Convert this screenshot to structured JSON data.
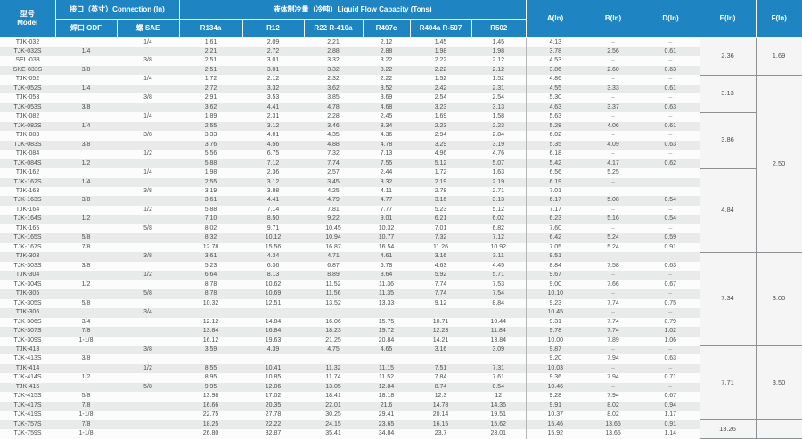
{
  "header": {
    "model_zh": "型号",
    "model_en": "Model",
    "connection": "接口（英寸）Connection (In)",
    "odf": "焊口 ODF",
    "sae": "螺 SAE",
    "capacity": "液体制冷量（冷吨）Liquid Flow Capacity (Tons)",
    "refrigerants": [
      "R134a",
      "R12",
      "R22 R-410a",
      "R407c",
      "R404a R-507",
      "R502"
    ],
    "dims": [
      "A(In)",
      "B(In)",
      "D(In)",
      "E(In)",
      "F(In)"
    ]
  },
  "colors": {
    "header_blue": "#1e85c2",
    "row_alt_gray": "#e9eaea",
    "text_gray": "#4e4f51"
  },
  "rows": [
    {
      "model": "TJK-032",
      "odf": "",
      "sae": "1/4",
      "c": [
        "1.61",
        "2.09",
        "2.21",
        "2.12",
        "1.45",
        "1.45"
      ],
      "a": "4.13",
      "b": "–",
      "d": "–"
    },
    {
      "model": "TJK-032S",
      "odf": "1/4",
      "sae": "",
      "c": [
        "2.21",
        "2.72",
        "2.88",
        "2.88",
        "1.98",
        "1.98"
      ],
      "a": "3.78",
      "b": "2.56",
      "d": "0.61"
    },
    {
      "model": "SEL-033",
      "odf": "",
      "sae": "3/8",
      "c": [
        "2.51",
        "3.01",
        "3.32",
        "3.22",
        "2.22",
        "2.12"
      ],
      "a": "4.53",
      "b": "–",
      "d": "–"
    },
    {
      "model": "SKE-033S",
      "odf": "3/8",
      "sae": "",
      "c": [
        "2.51",
        "3.01",
        "3.32",
        "3.22",
        "2.22",
        "2.12"
      ],
      "a": "3.86",
      "b": "2.60",
      "d": "0.63"
    },
    {
      "model": "TJK-052",
      "odf": "",
      "sae": "1/4",
      "c": [
        "1.72",
        "2.12",
        "2.32",
        "2.22",
        "1.52",
        "1.52"
      ],
      "a": "4.86",
      "b": "–",
      "d": "–"
    },
    {
      "model": "TJK-052S",
      "odf": "1/4",
      "sae": "",
      "c": [
        "2.72",
        "3.32",
        "3.62",
        "3.52",
        "2.42",
        "2.31"
      ],
      "a": "4.55",
      "b": "3.33",
      "d": "0.61"
    },
    {
      "model": "TJK-053",
      "odf": "",
      "sae": "3/8",
      "c": [
        "2.91",
        "3.53",
        "3.85",
        "3.69",
        "2.54",
        "2.54"
      ],
      "a": "5.30",
      "b": "–",
      "d": "–"
    },
    {
      "model": "TJK-053S",
      "odf": "3/8",
      "sae": "",
      "c": [
        "3.62",
        "4.41",
        "4.78",
        "4.68",
        "3.23",
        "3.13"
      ],
      "a": "4.63",
      "b": "3.37",
      "d": "0.63"
    },
    {
      "model": "TJK-082",
      "odf": "",
      "sae": "1/4",
      "c": [
        "1.89",
        "2.31",
        "2.28",
        "2.45",
        "1.69",
        "1.58"
      ],
      "a": "5.63",
      "b": "–",
      "d": "–"
    },
    {
      "model": "TJK-082S",
      "odf": "1/4",
      "sae": "",
      "c": [
        "2.55",
        "3.12",
        "3.46",
        "3.34",
        "2.23",
        "2.23"
      ],
      "a": "5.28",
      "b": "4.06",
      "d": "0.61"
    },
    {
      "model": "TJK-083",
      "odf": "",
      "sae": "3/8",
      "c": [
        "3.33",
        "4.01",
        "4.35",
        "4.36",
        "2.94",
        "2.84"
      ],
      "a": "6.02",
      "b": "–",
      "d": "–"
    },
    {
      "model": "TJK-083S",
      "odf": "3/8",
      "sae": "",
      "c": [
        "3.76",
        "4.56",
        "4.88",
        "4.78",
        "3.29",
        "3.19"
      ],
      "a": "5.35",
      "b": "4.09",
      "d": "0.63"
    },
    {
      "model": "TJK-084",
      "odf": "",
      "sae": "1/2",
      "c": [
        "5.56",
        "6.75",
        "7.32",
        "7.13",
        "4.96",
        "4.76"
      ],
      "a": "6.18",
      "b": "–",
      "d": "–"
    },
    {
      "model": "TJK-084S",
      "odf": "1/2",
      "sae": "",
      "c": [
        "5.88",
        "7.12",
        "7.74",
        "7.55",
        "5.12",
        "5.07"
      ],
      "a": "5.42",
      "b": "4.17",
      "d": "0.62"
    },
    {
      "model": "TJK-162",
      "odf": "",
      "sae": "1/4",
      "c": [
        "1.98",
        "2.36",
        "2.57",
        "2.44",
        "1.72",
        "1.63"
      ],
      "a": "6.56",
      "b": "5.25",
      "d": ""
    },
    {
      "model": "TJK-162S",
      "odf": "1/4",
      "sae": "",
      "c": [
        "2.55",
        "3.12",
        "3.45",
        "3.32",
        "2.19",
        "2.19"
      ],
      "a": "6.19",
      "b": "–",
      "d": ""
    },
    {
      "model": "TJK-163",
      "odf": "",
      "sae": "3/8",
      "c": [
        "3.19",
        "3.88",
        "4.25",
        "4.11",
        "2.78",
        "2.71"
      ],
      "a": "7.01",
      "b": "–",
      "d": ""
    },
    {
      "model": "TJK-163S",
      "odf": "3/8",
      "sae": "",
      "c": [
        "3.61",
        "4.41",
        "4.79",
        "4.77",
        "3.16",
        "3.13"
      ],
      "a": "6.17",
      "b": "5.08",
      "d": "0.54"
    },
    {
      "model": "TJK-164",
      "odf": "",
      "sae": "1/2",
      "c": [
        "5.88",
        "7.14",
        "7.81",
        "7.77",
        "5.23",
        "5.12"
      ],
      "a": "7.17",
      "b": "–",
      "d": "–"
    },
    {
      "model": "TJK-164S",
      "odf": "1/2",
      "sae": "",
      "c": [
        "7.10",
        "8.50",
        "9.22",
        "9.01",
        "6.21",
        "6.02"
      ],
      "a": "6.23",
      "b": "5.16",
      "d": "0.54"
    },
    {
      "model": "TJK-165",
      "odf": "",
      "sae": "5/8",
      "c": [
        "8.02",
        "9.71",
        "10.45",
        "10.32",
        "7.01",
        "6.82"
      ],
      "a": "7.60",
      "b": "–",
      "d": "–"
    },
    {
      "model": "TJK-165S",
      "odf": "5/8",
      "sae": "",
      "c": [
        "8.32",
        "10.12",
        "10.94",
        "10.77",
        "7.32",
        "7.12"
      ],
      "a": "6.42",
      "b": "5.24",
      "d": "0.59"
    },
    {
      "model": "TJK-167S",
      "odf": "7/8",
      "sae": "",
      "c": [
        "12.78",
        "15.56",
        "16.87",
        "16.54",
        "11.26",
        "10.92"
      ],
      "a": "7.05",
      "b": "5.24",
      "d": "0.91"
    },
    {
      "model": "TJK-303",
      "odf": "",
      "sae": "3/8",
      "c": [
        "3.61",
        "4.34",
        "4.71",
        "4.61",
        "3.16",
        "3.11"
      ],
      "a": "9.51",
      "b": "–",
      "d": "–"
    },
    {
      "model": "TJK-303S",
      "odf": "3/8",
      "sae": "",
      "c": [
        "5.23",
        "6.36",
        "6.87",
        "6.78",
        "4.63",
        "4.45"
      ],
      "a": "8.84",
      "b": "7.58",
      "d": "0.63"
    },
    {
      "model": "TJK-304",
      "odf": "",
      "sae": "1/2",
      "c": [
        "6.64",
        "8.13",
        "8.89",
        "8.64",
        "5.92",
        "5.71"
      ],
      "a": "9.67",
      "b": "–",
      "d": "–"
    },
    {
      "model": "TJK-304S",
      "odf": "1/2",
      "sae": "",
      "c": [
        "8.78",
        "10.62",
        "11.52",
        "11.36",
        "7.74",
        "7.53"
      ],
      "a": "9.00",
      "b": "7.66",
      "d": "0.67"
    },
    {
      "model": "TJK-305",
      "odf": "",
      "sae": "5/8",
      "c": [
        "8.78",
        "10.69",
        "11.56",
        "11.35",
        "7.74",
        "7.54"
      ],
      "a": "10.10",
      "b": "–",
      "d": "–"
    },
    {
      "model": "TJK-305S",
      "odf": "5/8",
      "sae": "",
      "c": [
        "10.32",
        "12.51",
        "13.52",
        "13.33",
        "9.12",
        "8.84"
      ],
      "a": "9.23",
      "b": "7.74",
      "d": "0.75"
    },
    {
      "model": "TJK-306",
      "odf": "",
      "sae": "3/4",
      "c": [
        "",
        "",
        "",
        "",
        "",
        ""
      ],
      "a": "10.45",
      "b": "–",
      "d": "–"
    },
    {
      "model": "TJK-306S",
      "odf": "3/4",
      "sae": "",
      "c": [
        "12.12",
        "14.84",
        "16.06",
        "15.75",
        "10.71",
        "10.44"
      ],
      "a": "9.31",
      "b": "7.74",
      "d": "0.79"
    },
    {
      "model": "TJK-307S",
      "odf": "7/8",
      "sae": "",
      "c": [
        "13.84",
        "16.84",
        "18.23",
        "19.72",
        "12.23",
        "11.84"
      ],
      "a": "9.78",
      "b": "7.74",
      "d": "1.02"
    },
    {
      "model": "TJK-309S",
      "odf": "1-1/8",
      "sae": "",
      "c": [
        "16.12",
        "19.63",
        "21.25",
        "20.84",
        "14.21",
        "13.84"
      ],
      "a": "10.00",
      "b": "7.89",
      "d": "1.06"
    },
    {
      "model": "TJK-413",
      "odf": "",
      "sae": "3/8",
      "c": [
        "3.59",
        "4.39",
        "4.75",
        "4.65",
        "3.16",
        "3.09"
      ],
      "a": "9.87",
      "b": "–",
      "d": "–"
    },
    {
      "model": "TJK-413S",
      "odf": "3/8",
      "sae": "",
      "c": [
        "",
        "",
        "",
        "",
        "",
        ""
      ],
      "a": "9.20",
      "b": "7.94",
      "d": "0.63"
    },
    {
      "model": "TJK-414",
      "odf": "",
      "sae": "1/2",
      "c": [
        "8.55",
        "10.41",
        "11.32",
        "11.15",
        "7.51",
        "7.31"
      ],
      "a": "10.03",
      "b": "–",
      "d": "–"
    },
    {
      "model": "TJK-414S",
      "odf": "1/2",
      "sae": "",
      "c": [
        "8.95",
        "10.85",
        "11.74",
        "11.52",
        "7.84",
        "7.61"
      ],
      "a": "9.36",
      "b": "7.94",
      "d": "0.71"
    },
    {
      "model": "TJK-415",
      "odf": "",
      "sae": "5/8",
      "c": [
        "9.95",
        "12.06",
        "13.05",
        "12.84",
        "8.74",
        "8.54"
      ],
      "a": "10.46",
      "b": "–",
      "d": "–"
    },
    {
      "model": "TJK-415S",
      "odf": "5/8",
      "sae": "",
      "c": [
        "13.98",
        "17.02",
        "18.41",
        "18.18",
        "12.3",
        "12"
      ],
      "a": "9.28",
      "b": "7.94",
      "d": "0.67"
    },
    {
      "model": "TJK-417S",
      "odf": "7/8",
      "sae": "",
      "c": [
        "16.66",
        "20.35",
        "22.01",
        "21.6",
        "14.78",
        "14.35"
      ],
      "a": "9.91",
      "b": "8.02",
      "d": "0.94"
    },
    {
      "model": "TJK-419S",
      "odf": "1-1/8",
      "sae": "",
      "c": [
        "22.75",
        "27.78",
        "30.25",
        "29.41",
        "20.14",
        "19.51"
      ],
      "a": "10.37",
      "b": "8.02",
      "d": "1.17"
    },
    {
      "model": "TJK-757S",
      "odf": "7/8",
      "sae": "",
      "c": [
        "18.25",
        "22.22",
        "24.15",
        "23.65",
        "16.15",
        "15.62"
      ],
      "a": "15.46",
      "b": "13.65",
      "d": "0.91"
    },
    {
      "model": "TJK-759S",
      "odf": "1-1/8",
      "sae": "",
      "c": [
        "26.80",
        "32.87",
        "35.41",
        "34.84",
        "23.7",
        "23.01"
      ],
      "a": "15.92",
      "b": "13.65",
      "d": "1.14"
    }
  ],
  "e_spans": [
    {
      "start": 1,
      "end": 4,
      "value": "2.36"
    },
    {
      "start": 5,
      "end": 8,
      "value": "3.13"
    },
    {
      "start": 9,
      "end": 14,
      "value": "3.86"
    },
    {
      "start": 15,
      "end": 23,
      "value": "4.84"
    },
    {
      "start": 24,
      "end": 33,
      "value": "7.34"
    },
    {
      "start": 34,
      "end": 41,
      "value": "7.71"
    },
    {
      "start": 42,
      "end": 43,
      "value": "13.26"
    }
  ],
  "f_spans": [
    {
      "start": 1,
      "end": 4,
      "value": "1.69"
    },
    {
      "start": 5,
      "end": 23,
      "value": "2.50"
    },
    {
      "start": 24,
      "end": 33,
      "value": "3.00"
    },
    {
      "start": 34,
      "end": 41,
      "value": "3.50"
    },
    {
      "start": 42,
      "end": 43,
      "value": ""
    }
  ]
}
